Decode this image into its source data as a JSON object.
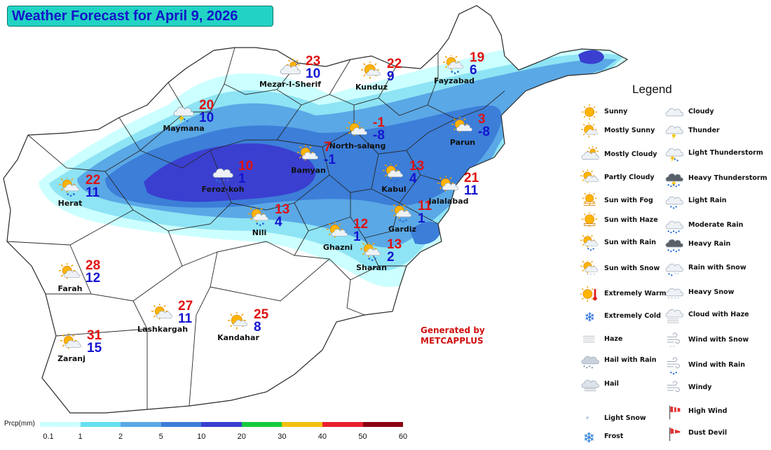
{
  "title": "Weather Forecast for April 9, 2026",
  "generated_by": {
    "line1": "Generated by",
    "line2": "METCAPPLUS"
  },
  "legend_title": "Legend",
  "cities": [
    {
      "name": "Mezar-I-Sherif",
      "icon": "mostly-cloudy-icon",
      "tmax": "23",
      "tmin": "10"
    },
    {
      "name": "Kunduz",
      "icon": "mostly-sunny-icon",
      "tmax": "22",
      "tmin": "9"
    },
    {
      "name": "Fayzabad",
      "icon": "sun-with-rain-icon",
      "tmax": "19",
      "tmin": "6"
    },
    {
      "name": "Maymana",
      "icon": "light-thunderstorm-icon",
      "tmax": "20",
      "tmin": "10"
    },
    {
      "name": "North-salang",
      "icon": "partly-cloudy-icon",
      "tmax": "-1",
      "tmin": "-8"
    },
    {
      "name": "Parun",
      "icon": "partly-cloudy-icon",
      "tmax": "3",
      "tmin": "-8"
    },
    {
      "name": "Herat",
      "icon": "sun-with-rain-icon",
      "tmax": "22",
      "tmin": "11"
    },
    {
      "name": "Feroz-koh",
      "icon": "rain-with-snow-icon",
      "tmax": "10",
      "tmin": "1"
    },
    {
      "name": "Bamyan",
      "icon": "partly-cloudy-icon",
      "tmax": "7",
      "tmin": "-1"
    },
    {
      "name": "Kabul",
      "icon": "sun-with-rain-icon",
      "tmax": "13",
      "tmin": "4"
    },
    {
      "name": "Jalalabad",
      "icon": "partly-cloudy-icon",
      "tmax": "21",
      "tmin": "11"
    },
    {
      "name": "Nili",
      "icon": "sun-with-rain-icon",
      "tmax": "13",
      "tmin": "4"
    },
    {
      "name": "Gardiz",
      "icon": "sun-with-rain-icon",
      "tmax": "11",
      "tmin": "1"
    },
    {
      "name": "Ghazni",
      "icon": "partly-cloudy-icon",
      "tmax": "12",
      "tmin": "1"
    },
    {
      "name": "Sharan",
      "icon": "sun-with-rain-icon",
      "tmax": "13",
      "tmin": "2"
    },
    {
      "name": "Farah",
      "icon": "partly-cloudy-icon",
      "tmax": "28",
      "tmin": "12"
    },
    {
      "name": "Lashkargah",
      "icon": "partly-cloudy-icon",
      "tmax": "27",
      "tmin": "11"
    },
    {
      "name": "Kandahar",
      "icon": "mostly-sunny-icon",
      "tmax": "25",
      "tmin": "8"
    },
    {
      "name": "Zaranj",
      "icon": "partly-cloudy-icon",
      "tmax": "31",
      "tmin": "15"
    }
  ],
  "legend": {
    "left": [
      {
        "label": "Sunny",
        "icon": "sunny-icon"
      },
      {
        "label": "Mostly Sunny",
        "icon": "mostly-sunny-icon"
      },
      {
        "label": "Mostly Cloudy",
        "icon": "mostly-cloudy-icon"
      },
      {
        "label": "Partly Cloudy",
        "icon": "partly-cloudy-icon"
      },
      {
        "label": "Sun with Fog",
        "icon": "sun-with-fog-icon"
      },
      {
        "label": "Sun with Haze",
        "icon": "sun-with-haze-icon"
      },
      {
        "label": "Sun with Rain",
        "icon": "sun-with-rain-icon"
      },
      {
        "label": "Sun with Snow",
        "icon": "sun-with-snow-icon"
      },
      {
        "label": "Extremely Warm",
        "icon": "extremely-warm-icon"
      },
      {
        "label": "Extremely Cold",
        "icon": "extremely-cold-icon"
      },
      {
        "label": "Haze",
        "icon": "haze-icon"
      },
      {
        "label": "Hail with Rain",
        "icon": "hail-with-rain-icon"
      },
      {
        "label": "Hail",
        "icon": "hail-icon"
      },
      {
        "label": "Light Snow",
        "icon": "light-snow-icon"
      },
      {
        "label": "Frost",
        "icon": "frost-icon"
      }
    ],
    "right": [
      {
        "label": "Cloudy",
        "icon": "cloudy-icon"
      },
      {
        "label": "Thunder",
        "icon": "thunder-icon"
      },
      {
        "label": "Light Thunderstorm",
        "icon": "light-thunderstorm-icon"
      },
      {
        "label": "Heavy Thunderstorm",
        "icon": "heavy-thunderstorm-icon"
      },
      {
        "label": "Light Rain",
        "icon": "light-rain-icon"
      },
      {
        "label": "Moderate Rain",
        "icon": "moderate-rain-icon"
      },
      {
        "label": "Heavy Rain",
        "icon": "heavy-rain-icon"
      },
      {
        "label": "Rain with Snow",
        "icon": "rain-with-snow-icon"
      },
      {
        "label": "Heavy Snow",
        "icon": "heavy-snow-icon"
      },
      {
        "label": "Cloud with Haze",
        "icon": "cloud-with-haze-icon"
      },
      {
        "label": "Wind with Snow",
        "icon": "wind-with-snow-icon"
      },
      {
        "label": "Wind with Rain",
        "icon": "wind-with-rain-icon"
      },
      {
        "label": "Windy",
        "icon": "windy-icon"
      },
      {
        "label": "High Wind",
        "icon": "high-wind-icon"
      },
      {
        "label": "Dust Devil",
        "icon": "dust-devil-icon"
      }
    ]
  },
  "colorbar": {
    "label": "Prcp(mm)",
    "ticks": [
      "0.1",
      "1",
      "2",
      "5",
      "10",
      "20",
      "30",
      "40",
      "50",
      "60"
    ],
    "colors": [
      "#ccffff",
      "#66e0f0",
      "#5aa8e6",
      "#3c7ed8",
      "#3a3fd0",
      "#14cc3c",
      "#f4c010",
      "#e82030",
      "#8b0014"
    ]
  },
  "map_colors": {
    "outline": "#2a2a2a",
    "prcp_lightest": "#ccffff",
    "prcp_light": "#8ee4f4",
    "prcp_mid": "#5aa8e6",
    "prcp_dark": "#3c7ed8",
    "prcp_darkest": "#3a3fd0"
  }
}
